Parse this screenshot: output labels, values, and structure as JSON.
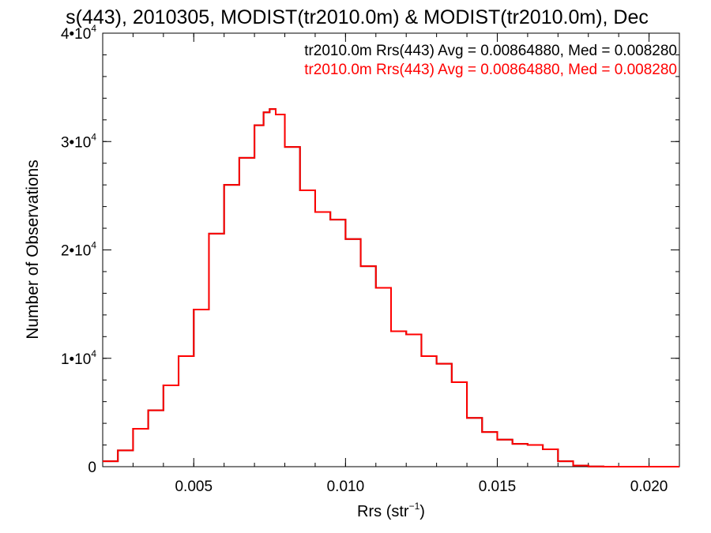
{
  "chart_data": {
    "type": "line",
    "title": "s(443), 2010305, MODIST(tr2010.0m) & MODIST(tr2010.0m), Dec",
    "xlabel": "Rrs (str",
    "xlabel_sup": "−1",
    "xlabel_close": ")",
    "ylabel": "Number of Observations",
    "xlim": [
      0.002,
      0.021
    ],
    "ylim": [
      0,
      40000
    ],
    "x_ticks": [
      {
        "value": 0.005,
        "label": "0.005"
      },
      {
        "value": 0.01,
        "label": "0.010"
      },
      {
        "value": 0.015,
        "label": "0.015"
      },
      {
        "value": 0.02,
        "label": "0.020"
      }
    ],
    "y_ticks": [
      {
        "value": 0,
        "mant": "0",
        "exp": ""
      },
      {
        "value": 10000,
        "mant": "1•10",
        "exp": "4"
      },
      {
        "value": 20000,
        "mant": "2•10",
        "exp": "4"
      },
      {
        "value": 30000,
        "mant": "3•10",
        "exp": "4"
      },
      {
        "value": 40000,
        "mant": "4•10",
        "exp": "4"
      }
    ],
    "legend": [
      {
        "text": "tr2010.0m Rrs(443) Avg = 0.00864880, Med = 0.008280",
        "color": "#000000"
      },
      {
        "text": "tr2010.0m Rrs(443) Avg = 0.00864880, Med = 0.008280",
        "color": "#ff0000"
      }
    ],
    "legend_position": "top-right",
    "series": [
      {
        "color": "#ff0000",
        "step": true,
        "x": [
          0.002,
          0.0025,
          0.003,
          0.0035,
          0.004,
          0.0045,
          0.005,
          0.0055,
          0.006,
          0.0065,
          0.007,
          0.0073,
          0.0075,
          0.0077,
          0.008,
          0.0085,
          0.009,
          0.0095,
          0.01,
          0.0105,
          0.011,
          0.0115,
          0.012,
          0.0125,
          0.013,
          0.0135,
          0.014,
          0.0145,
          0.015,
          0.0155,
          0.016,
          0.0165,
          0.017,
          0.0175,
          0.018,
          0.0185,
          0.019,
          0.02,
          0.021
        ],
        "y": [
          500,
          1500,
          3500,
          5200,
          7500,
          10200,
          14500,
          21500,
          26000,
          28500,
          31500,
          32700,
          33000,
          32500,
          29500,
          25500,
          23500,
          22800,
          21000,
          18500,
          16500,
          12500,
          12200,
          10200,
          9500,
          7800,
          4500,
          3200,
          2500,
          2100,
          2000,
          1600,
          500,
          100,
          20,
          0,
          0,
          0,
          0
        ]
      },
      {
        "color": "#000000",
        "step": true,
        "x": [
          0.002,
          0.0025,
          0.003,
          0.0035,
          0.004,
          0.0045,
          0.005,
          0.0055,
          0.006,
          0.0065,
          0.007,
          0.0073,
          0.0075,
          0.0077,
          0.008,
          0.0085,
          0.009,
          0.0095,
          0.01,
          0.0105,
          0.011,
          0.0115,
          0.012,
          0.0125,
          0.013,
          0.0135,
          0.014,
          0.0145,
          0.015,
          0.0155,
          0.016,
          0.0165,
          0.017,
          0.0175,
          0.018,
          0.0185,
          0.019,
          0.02,
          0.021
        ],
        "y": [
          500,
          1500,
          3500,
          5200,
          7500,
          10200,
          14500,
          21500,
          26000,
          28500,
          31500,
          32700,
          33000,
          32500,
          29500,
          25500,
          23500,
          22800,
          21000,
          18500,
          16500,
          12500,
          12200,
          10200,
          9500,
          7800,
          4500,
          3200,
          2500,
          2100,
          2000,
          1600,
          500,
          100,
          20,
          0,
          0,
          0,
          0
        ]
      }
    ]
  }
}
